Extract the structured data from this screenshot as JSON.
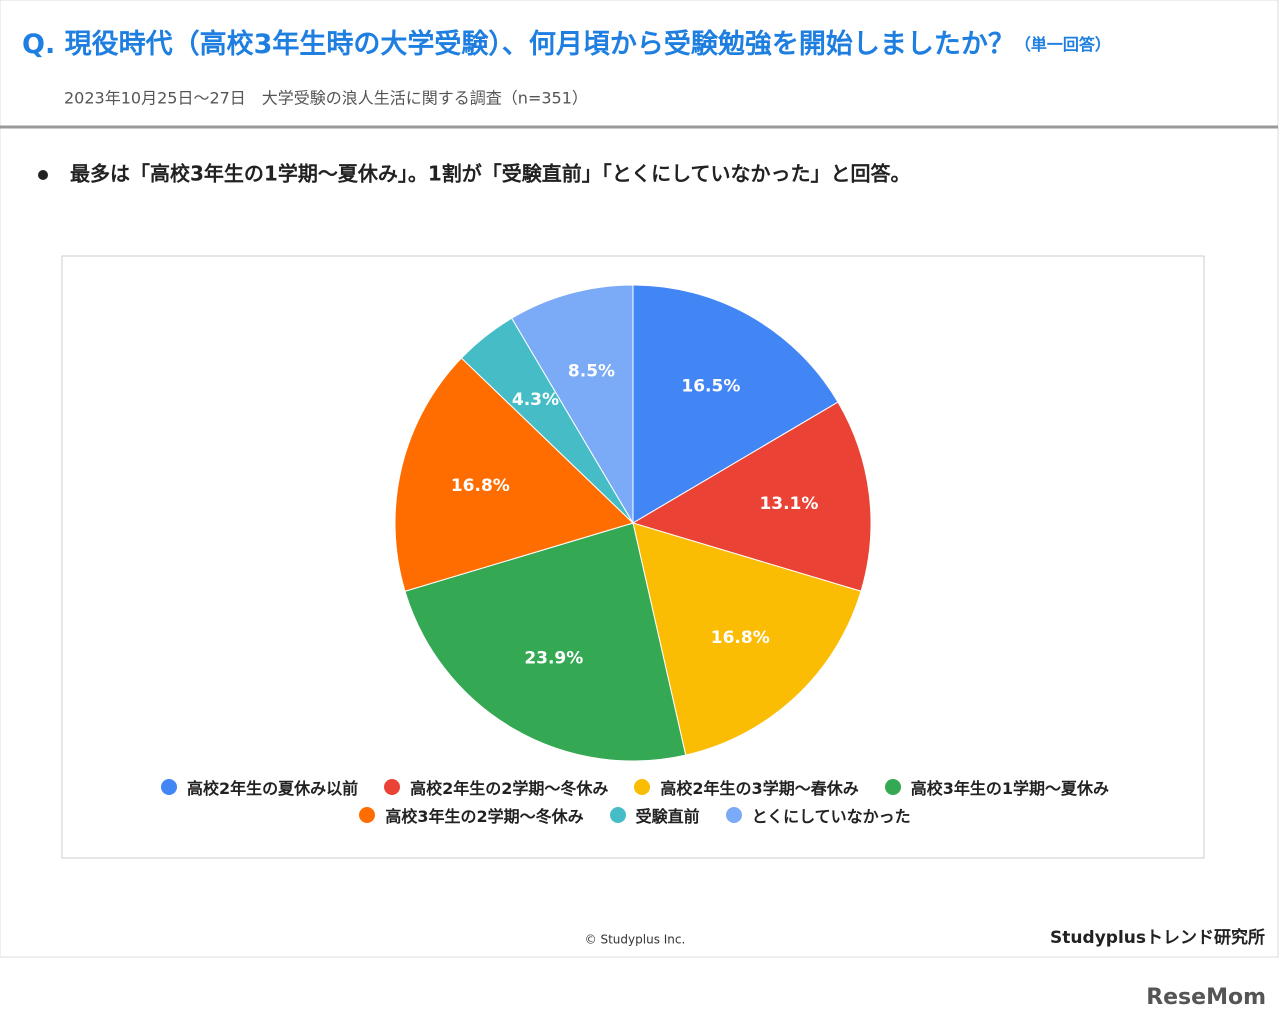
{
  "header": {
    "title": "Q. 現役時代（高校3年生時の大学受験）、何月頃から受験勉強を開始しましたか？",
    "title_note": "（単一回答）",
    "subtitle": "2023年10月25日〜27日　大学受験の浪人生活に関する調査（n=351）"
  },
  "bullet": "最多は「高校3年生の1学期〜夏休み」。1割が「受験直前」「とくにしていなかった」と回答。",
  "chart_data": {
    "type": "pie",
    "categories": [
      "高校2年生の夏休み以前",
      "高校2年生の2学期〜冬休み",
      "高校2年生の3学期〜春休み",
      "高校3年生の1学期〜夏休み",
      "高校3年生の2学期〜冬休み",
      "受験直前",
      "とくにしていなかった"
    ],
    "values": [
      16.5,
      13.1,
      16.8,
      23.9,
      16.8,
      4.3,
      8.5
    ],
    "value_labels": [
      "16.5%",
      "13.1%",
      "16.8%",
      "23.9%",
      "16.8%",
      "4.3%",
      "8.5%"
    ],
    "colors": [
      "#4285f4",
      "#ea4335",
      "#fbbc04",
      "#34a853",
      "#ff6d01",
      "#46bdc6",
      "#7baaf7"
    ],
    "legend": "bottom"
  },
  "footer": {
    "copyright": "© Studyplus Inc.",
    "brand": "Studyplusトレンド研究所",
    "watermark": "ReseMom"
  }
}
